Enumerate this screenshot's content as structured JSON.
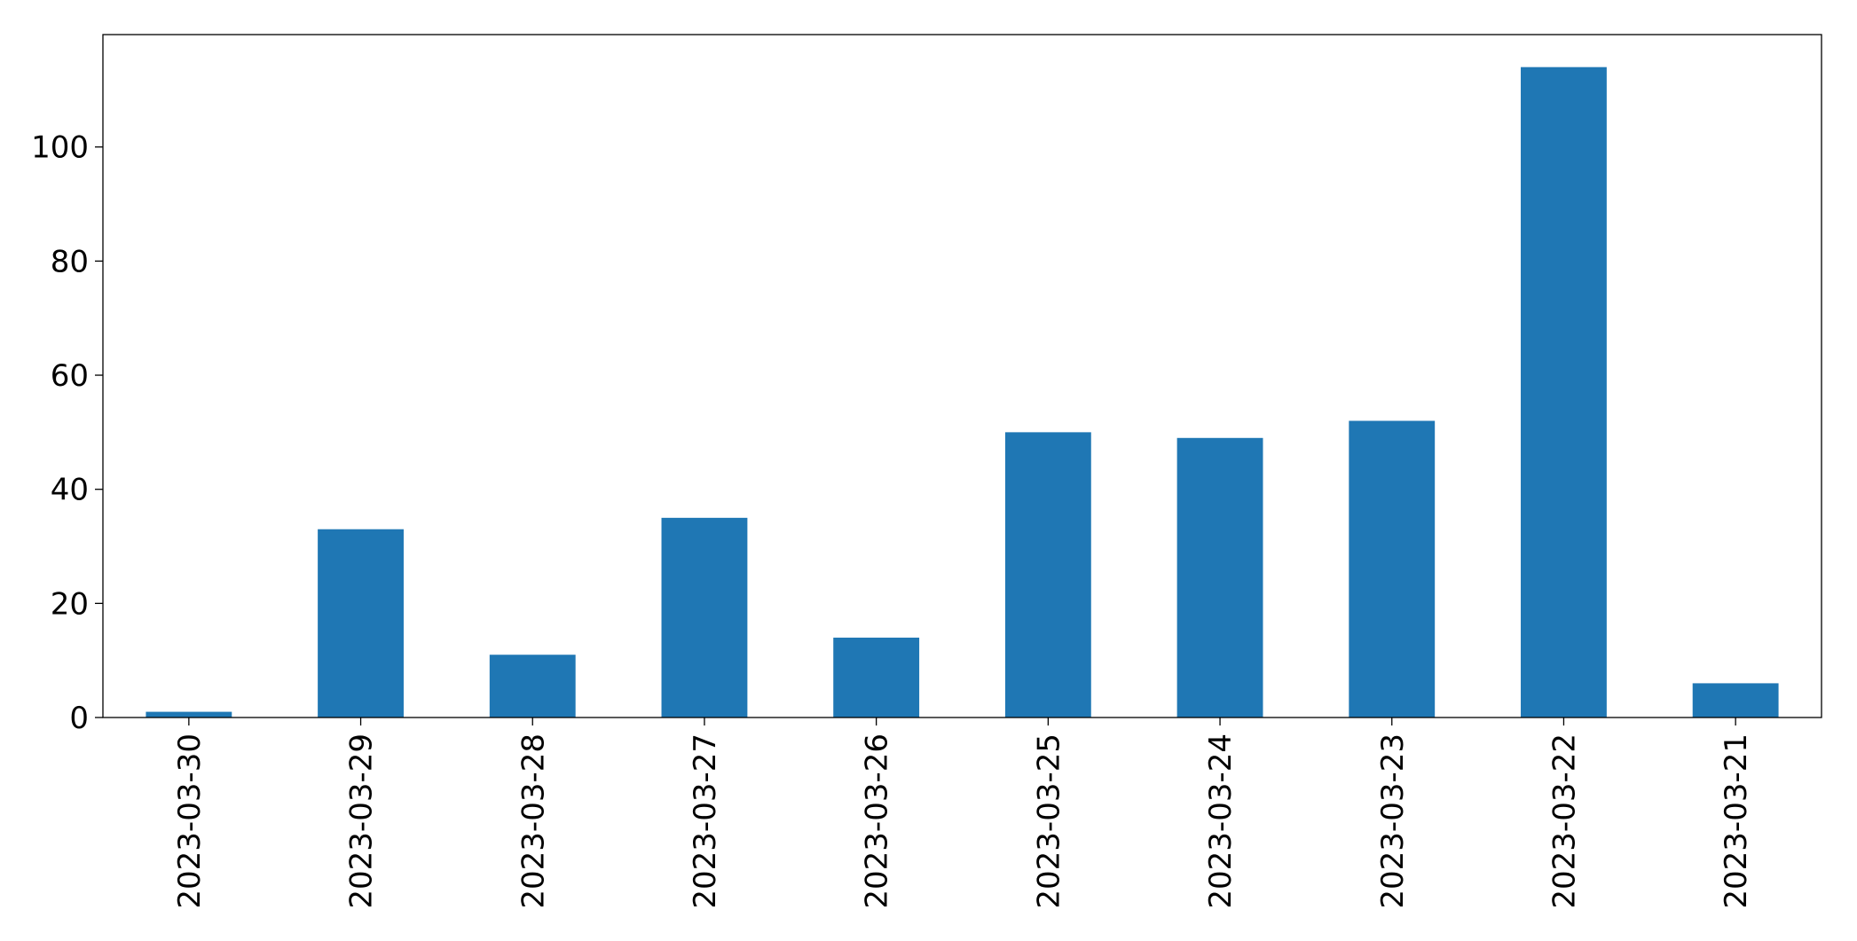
{
  "chart_data": {
    "type": "bar",
    "categories": [
      "2023-03-30",
      "2023-03-29",
      "2023-03-28",
      "2023-03-27",
      "2023-03-26",
      "2023-03-25",
      "2023-03-24",
      "2023-03-23",
      "2023-03-22",
      "2023-03-21"
    ],
    "values": [
      1,
      33,
      11,
      35,
      14,
      50,
      49,
      52,
      114,
      6
    ],
    "color": "#1f77b4",
    "ylim": [
      0,
      119.7
    ],
    "yticks": [
      0,
      20,
      40,
      60,
      80,
      100
    ],
    "grid": false
  }
}
